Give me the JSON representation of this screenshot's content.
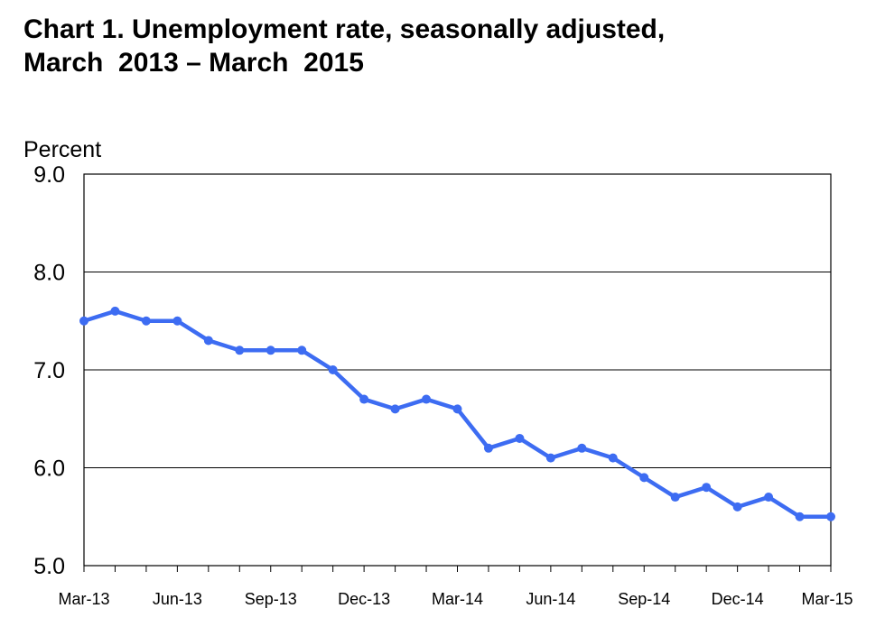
{
  "chart_data": {
    "type": "line",
    "title_line1": "Chart 1. Unemployment rate, seasonally adjusted,",
    "title_line2": "March  2013 – March  2015",
    "ylabel": "Percent",
    "xlabel": "",
    "ylim": [
      5.0,
      9.0
    ],
    "yticks": [
      "5.0",
      "6.0",
      "7.0",
      "8.0",
      "9.0"
    ],
    "xtick_labels": [
      "Mar-13",
      "Jun-13",
      "Sep-13",
      "Dec-13",
      "Mar-14",
      "Jun-14",
      "Sep-14",
      "Dec-14",
      "Mar-15"
    ],
    "x": [
      "Mar-13",
      "Apr-13",
      "May-13",
      "Jun-13",
      "Jul-13",
      "Aug-13",
      "Sep-13",
      "Oct-13",
      "Nov-13",
      "Dec-13",
      "Jan-14",
      "Feb-14",
      "Mar-14",
      "Apr-14",
      "May-14",
      "Jun-14",
      "Jul-14",
      "Aug-14",
      "Sep-14",
      "Oct-14",
      "Nov-14",
      "Dec-14",
      "Jan-15",
      "Feb-15",
      "Mar-15"
    ],
    "values": [
      7.5,
      7.6,
      7.5,
      7.5,
      7.3,
      7.2,
      7.2,
      7.2,
      7.0,
      6.7,
      6.6,
      6.7,
      6.6,
      6.2,
      6.3,
      6.1,
      6.2,
      6.1,
      5.9,
      5.7,
      5.8,
      5.6,
      5.7,
      5.5,
      5.5
    ],
    "grid": "horizontal",
    "line_color": "#3d6cf2"
  }
}
